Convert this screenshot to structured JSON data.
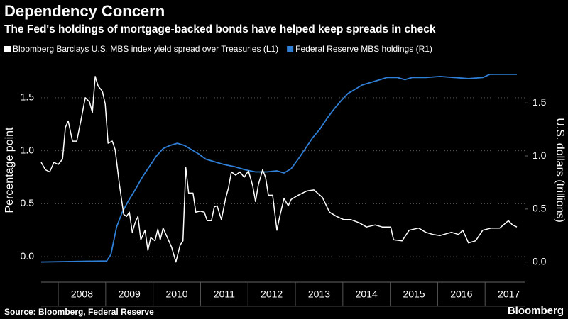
{
  "chart_data": {
    "type": "line",
    "title": "Dependency Concern",
    "subtitle": "The Fed's holdings of mortgage-backed bonds have helped keep spreads in check",
    "ylabel": "Percentage point",
    "y2label": "U.S. dollars (trillions)",
    "source": "Source: Bloomberg, Federal Reserve",
    "brand": "Bloomberg",
    "xlim": [
      2007.64,
      2017.85
    ],
    "xticks": [
      2008,
      2009,
      2010,
      2011,
      2012,
      2013,
      2014,
      2015,
      2016,
      2017
    ],
    "ylim": [
      -0.24,
      1.9
    ],
    "yticks": [
      {
        "value": 0,
        "label": "0.0"
      },
      0.5,
      {
        "value": 1,
        "label": "1.0"
      },
      1.5
    ],
    "y2lim": [
      -0.19,
      1.95
    ],
    "y2ticks": [
      {
        "value": 0,
        "label": "0.0"
      },
      0.5,
      {
        "value": 1,
        "label": "1.0"
      },
      1.5
    ],
    "grid": true,
    "legend": "top",
    "series": [
      {
        "name": "Bloomberg Barclays U.S. MBS index yield spread over Treasuries (L1)",
        "color": "#ffffff",
        "axis": "y",
        "x": [
          2007.64,
          2007.73,
          2007.82,
          2007.91,
          2008.0,
          2008.09,
          2008.15,
          2008.21,
          2008.3,
          2008.39,
          2008.48,
          2008.57,
          2008.66,
          2008.72,
          2008.78,
          2008.84,
          2008.93,
          2008.99,
          2009.05,
          2009.14,
          2009.2,
          2009.29,
          2009.38,
          2009.44,
          2009.5,
          2009.56,
          2009.62,
          2009.68,
          2009.74,
          2009.83,
          2009.89,
          2009.95,
          2010.04,
          2010.1,
          2010.15,
          2010.21,
          2010.3,
          2010.39,
          2010.48,
          2010.57,
          2010.63,
          2010.69,
          2010.75,
          2010.84,
          2010.9,
          2010.99,
          2011.08,
          2011.14,
          2011.23,
          2011.29,
          2011.35,
          2011.44,
          2011.53,
          2011.59,
          2011.65,
          2011.74,
          2011.83,
          2011.92,
          2012.01,
          2012.1,
          2012.16,
          2012.22,
          2012.31,
          2012.37,
          2012.43,
          2012.52,
          2012.61,
          2012.67,
          2012.76,
          2012.85,
          2012.91,
          2013.06,
          2013.24,
          2013.39,
          2013.57,
          2013.72,
          2013.87,
          2014.02,
          2014.17,
          2014.35,
          2014.5,
          2014.68,
          2014.83,
          2015.01,
          2015.07,
          2015.25,
          2015.4,
          2015.6,
          2015.75,
          2015.9,
          2016.05,
          2016.29,
          2016.44,
          2016.53,
          2016.65,
          2016.8,
          2016.95,
          2017.13,
          2017.31,
          2017.49,
          2017.58,
          2017.67
        ],
        "values": [
          0.89,
          0.82,
          0.8,
          0.89,
          0.87,
          0.92,
          1.22,
          1.28,
          1.09,
          1.09,
          1.29,
          1.5,
          1.46,
          1.36,
          1.7,
          1.61,
          1.56,
          1.44,
          1.07,
          1.09,
          1.01,
          0.68,
          0.4,
          0.38,
          0.42,
          0.23,
          0.32,
          0.38,
          0.16,
          0.25,
          0.06,
          0.18,
          0.15,
          0.26,
          0.16,
          0.27,
          0.18,
          0.09,
          -0.05,
          0.11,
          0.15,
          0.84,
          0.6,
          0.6,
          0.42,
          0.43,
          0.42,
          0.34,
          0.34,
          0.47,
          0.48,
          0.35,
          0.55,
          0.65,
          0.8,
          0.77,
          0.8,
          0.75,
          0.81,
          0.67,
          0.52,
          0.68,
          0.82,
          0.75,
          0.58,
          0.58,
          0.25,
          0.38,
          0.55,
          0.48,
          0.54,
          0.58,
          0.62,
          0.63,
          0.56,
          0.42,
          0.38,
          0.35,
          0.35,
          0.32,
          0.28,
          0.3,
          0.28,
          0.28,
          0.16,
          0.15,
          0.25,
          0.27,
          0.23,
          0.21,
          0.2,
          0.23,
          0.21,
          0.25,
          0.13,
          0.15,
          0.25,
          0.27,
          0.27,
          0.34,
          0.3,
          0.28
        ]
      },
      {
        "name": "Federal Reserve MBS holdings (R1)",
        "color": "#2f7fd6",
        "axis": "y2",
        "x": [
          2007.64,
          2009.02,
          2009.11,
          2009.23,
          2009.35,
          2009.47,
          2009.62,
          2009.77,
          2009.92,
          2010.07,
          2010.21,
          2010.36,
          2010.51,
          2010.66,
          2010.81,
          2010.96,
          2011.11,
          2011.26,
          2011.49,
          2011.71,
          2011.94,
          2012.16,
          2012.4,
          2012.61,
          2012.76,
          2012.91,
          2013.06,
          2013.21,
          2013.36,
          2013.51,
          2013.66,
          2013.81,
          2013.96,
          2014.11,
          2014.26,
          2014.41,
          2014.56,
          2014.71,
          2014.93,
          2015.15,
          2015.31,
          2015.46,
          2015.75,
          2016.05,
          2016.35,
          2016.65,
          2016.95,
          2017.1,
          2017.67
        ],
        "values": [
          0,
          0.01,
          0.07,
          0.33,
          0.47,
          0.57,
          0.68,
          0.8,
          0.9,
          1.0,
          1.07,
          1.1,
          1.12,
          1.1,
          1.06,
          1.02,
          0.97,
          0.95,
          0.92,
          0.9,
          0.87,
          0.85,
          0.85,
          0.86,
          0.84,
          0.88,
          0.97,
          1.07,
          1.17,
          1.25,
          1.35,
          1.44,
          1.52,
          1.59,
          1.63,
          1.67,
          1.69,
          1.71,
          1.74,
          1.74,
          1.72,
          1.74,
          1.74,
          1.75,
          1.74,
          1.73,
          1.74,
          1.77,
          1.77
        ]
      }
    ]
  }
}
